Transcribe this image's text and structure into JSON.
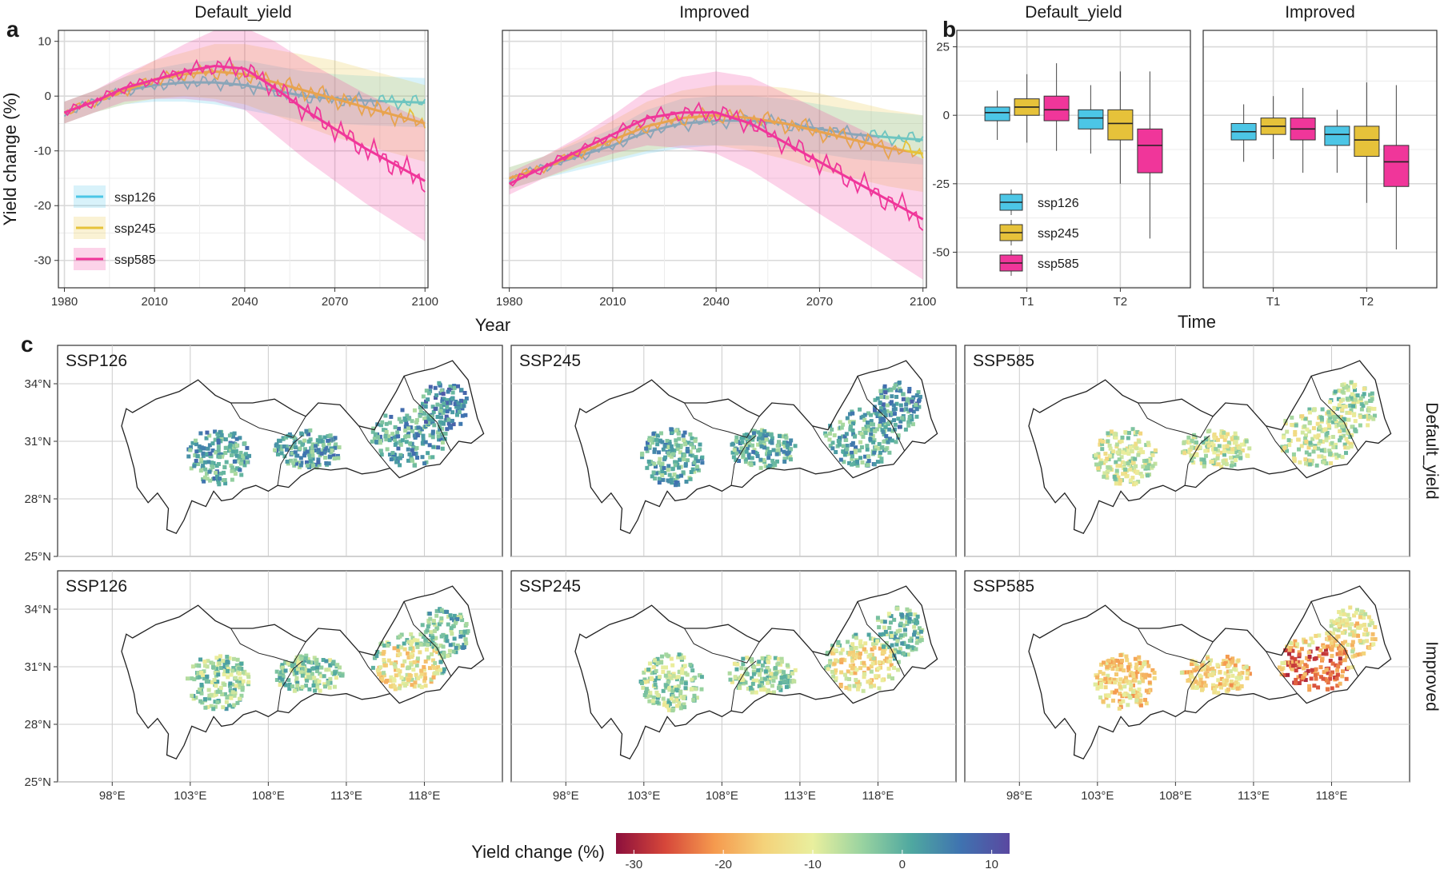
{
  "colors": {
    "ssp126": "#4cc6e6",
    "ssp245": "#e6c23a",
    "ssp585": "#f0369a",
    "boundary": "#222222",
    "grid": "#d9d9d9"
  },
  "panel_labels": {
    "a": "a",
    "b": "b",
    "c": "c"
  },
  "legend_a": [
    {
      "key": "ssp126"
    },
    {
      "key": "ssp245"
    },
    {
      "key": "ssp585"
    }
  ],
  "legend_b": [
    {
      "key": "ssp126"
    },
    {
      "key": "ssp245"
    },
    {
      "key": "ssp585"
    }
  ],
  "colorbar": {
    "title": "Yield change (%)",
    "ticks": [
      "-30",
      "-20",
      "-10",
      "0",
      "10"
    ],
    "min": -32,
    "max": 12,
    "stops": [
      "#8c0f3c",
      "#d6473a",
      "#f59a4e",
      "#f4d27a",
      "#e9ef9e",
      "#99d3a0",
      "#4fa8a0",
      "#3f73b0",
      "#5a48a0"
    ]
  },
  "chart_data": [
    {
      "panel": "a",
      "type": "line",
      "ylabel": "Yield change (%)",
      "xlabel": "Year",
      "xlim": [
        1978,
        2101
      ],
      "ylim": [
        -35,
        12
      ],
      "xticks": [
        1980,
        2010,
        2040,
        2070,
        2100
      ],
      "yticks": [
        10,
        0,
        -10,
        -20,
        -30
      ],
      "facets": [
        {
          "title": "Default_yield",
          "series": [
            {
              "name": "ssp126",
              "x": [
                1980,
                1990,
                2000,
                2010,
                2020,
                2030,
                2040,
                2050,
                2060,
                2070,
                2080,
                2090,
                2100
              ],
              "y": [
                -3,
                -1,
                1,
                2,
                2.5,
                2.5,
                2,
                1,
                0,
                -0.5,
                -0.8,
                -1,
                -1.2
              ],
              "band": [
                2,
                2,
                2.5,
                3,
                3.5,
                4,
                4.5,
                4.5,
                4.5,
                4.5,
                4.5,
                4.5,
                4.5
              ]
            },
            {
              "name": "ssp245",
              "x": [
                1980,
                1990,
                2000,
                2010,
                2020,
                2030,
                2040,
                2050,
                2060,
                2070,
                2080,
                2090,
                2100
              ],
              "y": [
                -3,
                -1,
                1,
                3,
                4,
                4.5,
                4,
                2.5,
                1,
                -0.5,
                -2,
                -3.5,
                -5
              ],
              "band": [
                2,
                2,
                2.5,
                3.5,
                4,
                5,
                5.5,
                6,
                6.5,
                7,
                7,
                7,
                7
              ]
            },
            {
              "name": "ssp585",
              "x": [
                1980,
                1990,
                2000,
                2010,
                2020,
                2030,
                2040,
                2050,
                2060,
                2070,
                2080,
                2090,
                2100
              ],
              "y": [
                -3,
                -1,
                1.5,
                3,
                4.5,
                5.5,
                5,
                1.5,
                -2.5,
                -6,
                -9.5,
                -12.5,
                -15.5
              ],
              "band": [
                2,
                2,
                2.5,
                3.5,
                5,
                6.5,
                7.5,
                8.5,
                9,
                9.5,
                10,
                10.5,
                11
              ]
            }
          ]
        },
        {
          "title": "Improved",
          "series": [
            {
              "name": "ssp126",
              "x": [
                1980,
                1990,
                2000,
                2010,
                2020,
                2030,
                2040,
                2050,
                2060,
                2070,
                2080,
                2090,
                2100
              ],
              "y": [
                -15,
                -13,
                -11,
                -9,
                -6.5,
                -5,
                -4.5,
                -4.5,
                -5,
                -6,
                -7,
                -7.5,
                -8
              ],
              "band": [
                2,
                2,
                2.5,
                3,
                4,
                4.5,
                4.5,
                4.5,
                4.5,
                4.5,
                4.5,
                4.5,
                4.5
              ]
            },
            {
              "name": "ssp245",
              "x": [
                1980,
                1990,
                2000,
                2010,
                2020,
                2030,
                2040,
                2050,
                2060,
                2070,
                2080,
                2090,
                2100
              ],
              "y": [
                -15,
                -13,
                -10.5,
                -8,
                -5.5,
                -4,
                -3.5,
                -4,
                -5,
                -6.5,
                -8,
                -9.5,
                -10.5
              ],
              "band": [
                2,
                2,
                2.5,
                3.5,
                4.5,
                5,
                5.5,
                6,
                6.5,
                7,
                7,
                7,
                7
              ]
            },
            {
              "name": "ssp585",
              "x": [
                1980,
                1990,
                2000,
                2010,
                2020,
                2030,
                2040,
                2050,
                2060,
                2070,
                2080,
                2090,
                2100
              ],
              "y": [
                -16,
                -13,
                -10,
                -7,
                -4,
                -3,
                -3,
                -5,
                -8.5,
                -12,
                -15.5,
                -19,
                -22.5
              ],
              "band": [
                2,
                2,
                2.5,
                3.5,
                5,
                6.5,
                7.5,
                8.5,
                9,
                9.5,
                10,
                10.5,
                11
              ]
            }
          ]
        }
      ]
    },
    {
      "panel": "b",
      "type": "box",
      "xlabel": "Time",
      "ylim": [
        -63,
        31
      ],
      "yticks": [
        25,
        0,
        -25,
        -50
      ],
      "categories": [
        "T1",
        "T2"
      ],
      "facets": [
        {
          "title": "Default_yield",
          "boxes": [
            {
              "cat": "T1",
              "series": "ssp126",
              "q1": -2,
              "med": 1,
              "q3": 3,
              "lo": -9,
              "hi": 9
            },
            {
              "cat": "T1",
              "series": "ssp245",
              "q1": 0,
              "med": 3,
              "q3": 6,
              "lo": -10,
              "hi": 15
            },
            {
              "cat": "T1",
              "series": "ssp585",
              "q1": -2,
              "med": 2,
              "q3": 7,
              "lo": -13,
              "hi": 19
            },
            {
              "cat": "T2",
              "series": "ssp126",
              "q1": -5,
              "med": -1,
              "q3": 2,
              "lo": -14,
              "hi": 11
            },
            {
              "cat": "T2",
              "series": "ssp245",
              "q1": -9,
              "med": -3,
              "q3": 2,
              "lo": -25,
              "hi": 16
            },
            {
              "cat": "T2",
              "series": "ssp585",
              "q1": -21,
              "med": -11,
              "q3": -5,
              "lo": -45,
              "hi": 16
            }
          ]
        },
        {
          "title": "Improved",
          "boxes": [
            {
              "cat": "T1",
              "series": "ssp126",
              "q1": -9,
              "med": -6,
              "q3": -3,
              "lo": -17,
              "hi": 4
            },
            {
              "cat": "T1",
              "series": "ssp245",
              "q1": -7,
              "med": -4,
              "q3": -1,
              "lo": -16,
              "hi": 7
            },
            {
              "cat": "T1",
              "series": "ssp585",
              "q1": -9,
              "med": -5,
              "q3": -1,
              "lo": -21,
              "hi": 10
            },
            {
              "cat": "T2",
              "series": "ssp126",
              "q1": -11,
              "med": -7,
              "q3": -4,
              "lo": -21,
              "hi": 2
            },
            {
              "cat": "T2",
              "series": "ssp245",
              "q1": -15,
              "med": -9,
              "q3": -4,
              "lo": -32,
              "hi": 12
            },
            {
              "cat": "T2",
              "series": "ssp585",
              "q1": -26,
              "med": -17,
              "q3": -11,
              "lo": -49,
              "hi": 11
            }
          ]
        }
      ]
    },
    {
      "panel": "c",
      "type": "heatmap",
      "columns": [
        "SSP126",
        "SSP245",
        "SSP585"
      ],
      "rows": [
        "Default_yield",
        "Improved"
      ],
      "xticks": [
        "98°E",
        "103°E",
        "108°E",
        "113°E",
        "118°E"
      ],
      "yticks": [
        "34°N",
        "31°N",
        "28°N",
        "25°N"
      ],
      "lon_range": [
        94.5,
        123
      ],
      "lat_range": [
        25,
        36
      ],
      "lon_values": [
        98,
        103,
        108,
        113,
        118
      ],
      "lat_values": [
        34,
        31,
        28,
        25
      ],
      "mean_change": [
        [
          1,
          0,
          -8
        ],
        [
          -4,
          -5,
          -15
        ]
      ]
    }
  ]
}
